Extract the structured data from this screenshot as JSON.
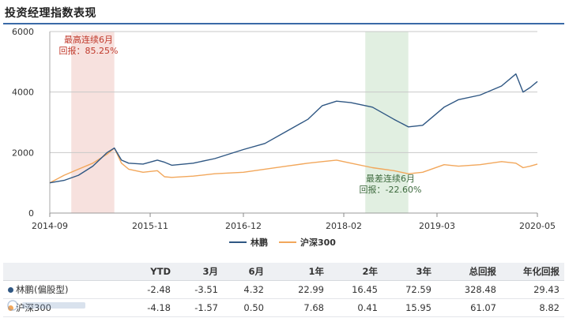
{
  "header": {
    "title": "投资经理指数表现"
  },
  "colors": {
    "manager": "#2f5783",
    "benchmark": "#f2a75b",
    "best_band": "#f6dcd8",
    "worst_band": "#dcecdc",
    "best_text": "#c0392b",
    "worst_text": "#3f6b3f",
    "title_rule": "#3a6aa8"
  },
  "chart_data": {
    "type": "line",
    "y_ticks": [
      "0",
      "2000",
      "4000",
      "6000"
    ],
    "ylim": [
      0,
      6000
    ],
    "x_ticks": [
      "2014-09",
      "2015-11",
      "2016-12",
      "2018-02",
      "2019-03",
      "2020-05"
    ],
    "xlim": [
      "2014-09",
      "2020-05"
    ],
    "grid": "horizontal",
    "series": [
      {
        "name": "林鹏",
        "color": "#2f5783",
        "points": [
          [
            "2014-09",
            1000
          ],
          [
            "2014-11",
            1080
          ],
          [
            "2015-01",
            1250
          ],
          [
            "2015-03",
            1550
          ],
          [
            "2015-05",
            2000
          ],
          [
            "2015-06",
            2150
          ],
          [
            "2015-07",
            1750
          ],
          [
            "2015-08",
            1650
          ],
          [
            "2015-10",
            1620
          ],
          [
            "2015-12",
            1750
          ],
          [
            "2016-01",
            1680
          ],
          [
            "2016-02",
            1580
          ],
          [
            "2016-05",
            1650
          ],
          [
            "2016-08",
            1800
          ],
          [
            "2016-12",
            2100
          ],
          [
            "2017-03",
            2300
          ],
          [
            "2017-06",
            2700
          ],
          [
            "2017-09",
            3100
          ],
          [
            "2017-11",
            3550
          ],
          [
            "2018-01",
            3700
          ],
          [
            "2018-03",
            3650
          ],
          [
            "2018-06",
            3500
          ],
          [
            "2018-09",
            3100
          ],
          [
            "2018-11",
            2850
          ],
          [
            "2019-01",
            2900
          ],
          [
            "2019-04",
            3500
          ],
          [
            "2019-06",
            3750
          ],
          [
            "2019-09",
            3900
          ],
          [
            "2019-12",
            4200
          ],
          [
            "2020-02",
            4600
          ],
          [
            "2020-03",
            4000
          ],
          [
            "2020-04",
            4150
          ],
          [
            "2020-05",
            4350
          ]
        ]
      },
      {
        "name": "沪深300",
        "color": "#f2a75b",
        "points": [
          [
            "2014-09",
            1000
          ],
          [
            "2014-11",
            1250
          ],
          [
            "2015-01",
            1450
          ],
          [
            "2015-03",
            1650
          ],
          [
            "2015-05",
            1950
          ],
          [
            "2015-06",
            2150
          ],
          [
            "2015-07",
            1650
          ],
          [
            "2015-08",
            1450
          ],
          [
            "2015-10",
            1350
          ],
          [
            "2015-12",
            1400
          ],
          [
            "2016-01",
            1200
          ],
          [
            "2016-02",
            1180
          ],
          [
            "2016-05",
            1220
          ],
          [
            "2016-08",
            1300
          ],
          [
            "2016-12",
            1350
          ],
          [
            "2017-03",
            1450
          ],
          [
            "2017-06",
            1550
          ],
          [
            "2017-09",
            1650
          ],
          [
            "2017-11",
            1700
          ],
          [
            "2018-01",
            1750
          ],
          [
            "2018-03",
            1650
          ],
          [
            "2018-06",
            1500
          ],
          [
            "2018-09",
            1400
          ],
          [
            "2018-11",
            1300
          ],
          [
            "2019-01",
            1350
          ],
          [
            "2019-04",
            1600
          ],
          [
            "2019-06",
            1550
          ],
          [
            "2019-09",
            1600
          ],
          [
            "2019-12",
            1700
          ],
          [
            "2020-02",
            1650
          ],
          [
            "2020-03",
            1500
          ],
          [
            "2020-04",
            1550
          ],
          [
            "2020-05",
            1620
          ]
        ]
      }
    ],
    "annotations": [
      {
        "text": [
          "最高连续6月",
          "回报：85.25%"
        ],
        "band": [
          "2014-12",
          "2015-06"
        ]
      },
      {
        "text": [
          "最差连续6月",
          "回报：-22.60%"
        ],
        "band": [
          "2018-05",
          "2018-11"
        ]
      }
    ],
    "legend": {
      "placement": "bottom-center",
      "items": [
        "林鹏",
        "沪深300"
      ]
    }
  },
  "table": {
    "headers": [
      "",
      "YTD",
      "3月",
      "6月",
      "1年",
      "2年",
      "3年",
      "总回报",
      "年化回报"
    ],
    "rows": [
      {
        "name": "林鹏(偏股型)",
        "color": "#2f5783",
        "values": [
          "-2.48",
          "-3.51",
          "4.32",
          "22.99",
          "16.45",
          "72.59",
          "328.48",
          "29.43"
        ]
      },
      {
        "name": "沪深300",
        "color": "#f2a75b",
        "values": [
          "-4.18",
          "-1.57",
          "0.50",
          "7.68",
          "0.41",
          "15.95",
          "61.07",
          "8.82"
        ]
      }
    ]
  },
  "watermark": "基金经理指数"
}
